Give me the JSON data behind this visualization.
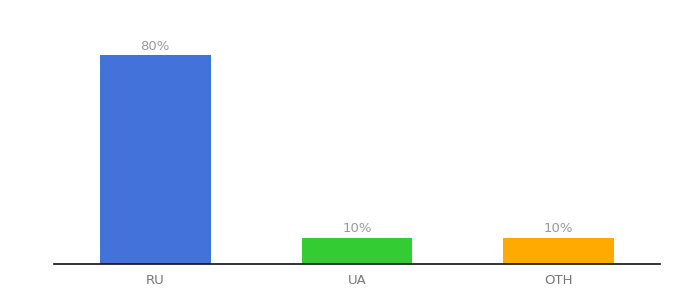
{
  "categories": [
    "RU",
    "UA",
    "OTH"
  ],
  "values": [
    80,
    10,
    10
  ],
  "bar_colors": [
    "#4472db",
    "#33cc33",
    "#ffaa00"
  ],
  "labels": [
    "80%",
    "10%",
    "10%"
  ],
  "background_color": "#ffffff",
  "ylim": [
    0,
    92
  ],
  "label_fontsize": 9.5,
  "tick_fontsize": 9.5,
  "label_color": "#999999",
  "tick_color": "#777777",
  "bar_width": 0.55,
  "xlim": [
    -0.5,
    2.5
  ]
}
